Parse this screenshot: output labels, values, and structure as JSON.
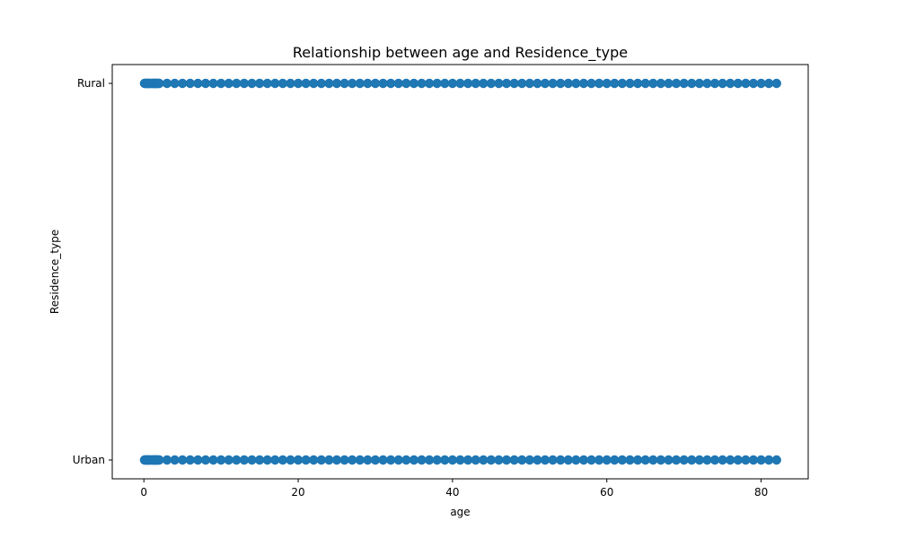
{
  "chart_data": {
    "type": "scatter",
    "title": "Relationship between age and Residence_type",
    "xlabel": "age",
    "ylabel": "Residence_type",
    "xlim": [
      -4.1,
      86.1
    ],
    "x_ticks": [
      0,
      20,
      40,
      60,
      80
    ],
    "y_categories": [
      "Urban",
      "Rural"
    ],
    "grid": false,
    "legend": "none",
    "marker_color": "#1f77b4",
    "series": [
      {
        "y": "Rural",
        "x": [
          0.08,
          0.16,
          0.24,
          0.32,
          0.4,
          0.48,
          0.56,
          0.64,
          0.72,
          0.8,
          0.88,
          1.08,
          1.16,
          1.24,
          1.32,
          1.4,
          1.48,
          1.56,
          1.64,
          1.72,
          1.8,
          1.88,
          2,
          3,
          4,
          5,
          6,
          7,
          8,
          9,
          10,
          11,
          12,
          13,
          14,
          15,
          16,
          17,
          18,
          19,
          20,
          21,
          22,
          23,
          24,
          25,
          26,
          27,
          28,
          29,
          30,
          31,
          32,
          33,
          34,
          35,
          36,
          37,
          38,
          39,
          40,
          41,
          42,
          43,
          44,
          45,
          46,
          47,
          48,
          49,
          50,
          51,
          52,
          53,
          54,
          55,
          56,
          57,
          58,
          59,
          60,
          61,
          62,
          63,
          64,
          65,
          66,
          67,
          68,
          69,
          70,
          71,
          72,
          73,
          74,
          75,
          76,
          77,
          78,
          79,
          80,
          81,
          82
        ]
      },
      {
        "y": "Urban",
        "x": [
          0.08,
          0.16,
          0.24,
          0.32,
          0.4,
          0.48,
          0.56,
          0.64,
          0.72,
          0.8,
          0.88,
          1.08,
          1.16,
          1.24,
          1.32,
          1.4,
          1.48,
          1.56,
          1.64,
          1.72,
          1.8,
          1.88,
          2,
          3,
          4,
          5,
          6,
          7,
          8,
          9,
          10,
          11,
          12,
          13,
          14,
          15,
          16,
          17,
          18,
          19,
          20,
          21,
          22,
          23,
          24,
          25,
          26,
          27,
          28,
          29,
          30,
          31,
          32,
          33,
          34,
          35,
          36,
          37,
          38,
          39,
          40,
          41,
          42,
          43,
          44,
          45,
          46,
          47,
          48,
          49,
          50,
          51,
          52,
          53,
          54,
          55,
          56,
          57,
          58,
          59,
          60,
          61,
          62,
          63,
          64,
          65,
          66,
          67,
          68,
          69,
          70,
          71,
          72,
          73,
          74,
          75,
          76,
          77,
          78,
          79,
          80,
          81,
          82
        ]
      }
    ]
  }
}
